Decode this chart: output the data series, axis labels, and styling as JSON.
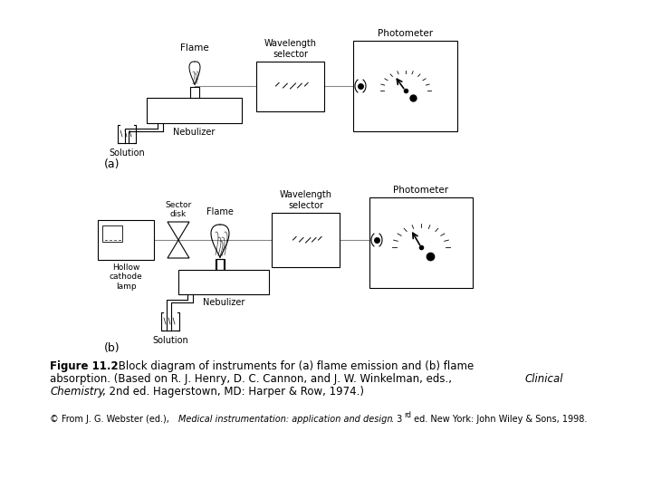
{
  "bg_color": "#ffffff",
  "fig_width": 7.2,
  "fig_height": 5.4,
  "caption_bold": "Figure 11.2",
  "caption_rest": " Block diagram of instruments for (a) flame emission and (b) flame",
  "caption_line2": "absorption. (Based on R. J. Henry, D. C. Cannon, and J. W. Winkelman, eds., ",
  "caption_italic1": "Clinical",
  "caption_line3_italic": "Chemistry",
  "caption_line3_rest": ", 2nd ed. Hagerstown, MD: Harper & Row, 1974.)",
  "footnote_prefix": "© From J. G. Webster (ed.), ",
  "footnote_italic": "Medical instrumentation: application and design",
  "footnote_tail": ". 3ʳᵈ ed. New York: John Wiley & Sons, 1998.",
  "diagram_a_label": "(a)",
  "diagram_b_label": "(b)"
}
